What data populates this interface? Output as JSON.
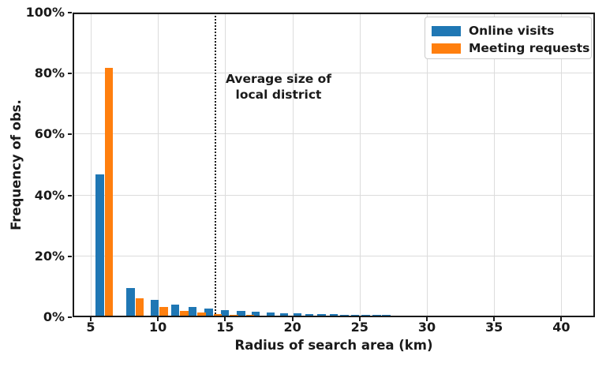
{
  "figure": {
    "background": "#ffffff",
    "annotation": {
      "line1": "Average size of",
      "line2": "local district"
    }
  },
  "chart_data": {
    "type": "bar",
    "title": "",
    "xlabel": "Radius of search area (km)",
    "ylabel": "Frequency of obs.",
    "x": [
      6.0,
      8.3,
      10.1,
      11.6,
      12.9,
      14.1,
      15.3,
      16.5,
      17.6,
      18.7,
      19.7,
      20.7,
      21.6,
      22.5,
      23.4,
      24.2,
      25.0,
      25.8,
      26.6,
      27.3,
      28.0,
      28.7,
      29.4,
      30.1,
      30.7,
      31.4,
      32.0,
      32.6,
      33.2,
      33.8,
      34.4,
      35.0,
      35.5,
      36.0,
      36.5,
      37.0,
      37.5,
      38.0,
      38.5,
      39.0,
      39.5,
      40.0
    ],
    "series": [
      {
        "name": "Online visits",
        "color": "#1f77b4",
        "values": [
          47,
          9.6,
          5.8,
          4.2,
          3.4,
          2.9,
          2.4,
          2.0,
          1.8,
          1.5,
          1.4,
          1.2,
          1.1,
          1.0,
          1.0,
          0.9,
          0.8,
          0.8,
          0.7,
          0.7,
          0.6,
          0.6,
          0.6,
          0.5,
          0.5,
          0.5,
          0.5,
          0.5,
          0.4,
          0.4,
          0.4,
          0.4,
          0.4,
          0.4,
          0.4,
          0.4,
          0.4,
          0.4,
          0.4,
          0.4,
          0.4,
          0.4
        ]
      },
      {
        "name": "Meeting requests",
        "color": "#ff7f0e",
        "values": [
          82,
          6.2,
          3.3,
          2.0,
          1.5,
          1.0,
          0.8,
          0.7,
          0.6,
          0.5,
          0.5,
          0.4,
          0.4,
          0.4,
          0.3,
          0.3,
          0.3,
          0.3,
          0.3,
          0.3,
          0.3,
          0.3,
          0.3,
          0.3,
          0,
          0,
          0,
          0,
          0,
          0,
          0,
          0,
          0,
          0,
          0,
          0,
          0,
          0,
          0,
          0,
          0,
          0
        ]
      }
    ],
    "xticks": [
      5,
      10,
      15,
      20,
      25,
      30,
      35,
      40
    ],
    "xtick_labels": [
      "5",
      "10",
      "15",
      "20",
      "25",
      "30",
      "35",
      "40"
    ],
    "ytick_values": [
      0,
      20,
      40,
      60,
      80,
      100
    ],
    "ytick_labels": [
      "0%",
      "20%",
      "40%",
      "60%",
      "80%",
      "100%"
    ],
    "xlim": [
      3.65,
      42.5
    ],
    "ylim": [
      0,
      100
    ],
    "grid": true,
    "legend_position": "upper right",
    "vline": {
      "x": 14.2,
      "style": "dotted",
      "color": "#1a1a1a",
      "label": "Average size of\nlocal district"
    }
  }
}
